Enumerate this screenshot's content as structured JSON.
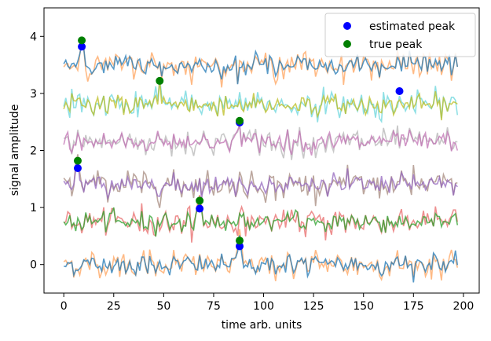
{
  "chart_data": {
    "type": "line",
    "title": "",
    "xlabel": "time arb. units",
    "ylabel": "signal amplitude",
    "xlim": [
      -9.9,
      207.9
    ],
    "ylim": [
      -0.5,
      4.5
    ],
    "xticks": [
      0,
      25,
      50,
      75,
      100,
      125,
      150,
      175,
      200
    ],
    "yticks": [
      0,
      1,
      2,
      3,
      4
    ],
    "legend": {
      "position": "top-right",
      "entries": [
        {
          "label": "estimated peak",
          "color": "#0000ff"
        },
        {
          "label": "true peak",
          "color": "#008000"
        }
      ]
    },
    "series": [
      {
        "offset": 0.0,
        "true_peak_x": 88,
        "true_peak_y": 0.42,
        "est_peak_x": 88,
        "est_peak_y": 0.32,
        "noisy_color": "#ffa35c",
        "smooth_color": "#1f77b4"
      },
      {
        "offset": 0.75,
        "true_peak_x": 68,
        "true_peak_y": 1.12,
        "est_peak_x": 68,
        "est_peak_y": 0.98,
        "noisy_color": "#e86b6b",
        "smooth_color": "#2ca02c"
      },
      {
        "offset": 1.4,
        "true_peak_x": 7,
        "true_peak_y": 1.82,
        "est_peak_x": 7,
        "est_peak_y": 1.69,
        "noisy_color": "#a58a7e",
        "smooth_color": "#9467bd"
      },
      {
        "offset": 2.15,
        "true_peak_x": 88,
        "true_peak_y": 2.52,
        "est_peak_x": 88,
        "est_peak_y": 2.49,
        "noisy_color": "#b5b5b5",
        "smooth_color": "#c173b4"
      },
      {
        "offset": 2.8,
        "true_peak_x": 48,
        "true_peak_y": 3.22,
        "est_peak_x": 168,
        "est_peak_y": 3.04,
        "noisy_color": "#6ad6dc",
        "smooth_color": "#bcbd22"
      },
      {
        "offset": 3.5,
        "true_peak_x": 9,
        "true_peak_y": 3.93,
        "est_peak_x": 9,
        "est_peak_y": 3.82,
        "noisy_color": "#ffa35c",
        "smooth_color": "#1f77b4"
      }
    ]
  }
}
